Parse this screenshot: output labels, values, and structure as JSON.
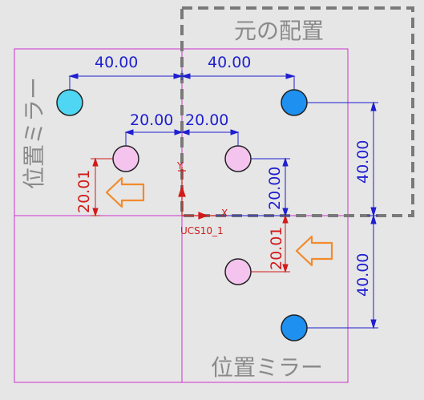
{
  "labels": {
    "original_placement": "元の配置",
    "mirror_left": "位置ミラー",
    "mirror_bottom": "位置ミラー",
    "ucs": "UCS10_1",
    "axis_x": "X",
    "axis_y": "Y"
  },
  "dimensions": {
    "top_left_40": "40.00",
    "top_right_40": "40.00",
    "mid_left_20": "20.00",
    "mid_right_20": "20.00",
    "vert_right_upper_40": "40.00",
    "vert_right_lower_40": "40.00",
    "vert_mid_20": "20.00",
    "red_left_20_01": "20.01",
    "red_right_20_01": "20.01"
  },
  "colors": {
    "background": "#e6e6e6",
    "frame": "#cc33cc",
    "dimension": "#1f1fd0",
    "red": "#d21a1a",
    "cyan_hole": "#4fd6f2",
    "blue_hole": "#1e90f0",
    "pink_hole": "#f4c4ee",
    "arrow": "#f28a2c",
    "dashed_box": "#7a7a7a"
  },
  "icons": {
    "arrow_left": "orange-outline-arrow-left"
  }
}
